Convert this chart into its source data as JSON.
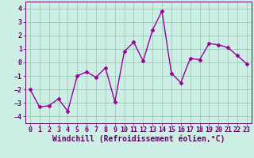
{
  "x": [
    0,
    1,
    2,
    3,
    4,
    5,
    6,
    7,
    8,
    9,
    10,
    11,
    12,
    13,
    14,
    15,
    16,
    17,
    18,
    19,
    20,
    21,
    22,
    23
  ],
  "y": [
    -2.0,
    -3.3,
    -3.2,
    -2.7,
    -3.6,
    -1.0,
    -0.7,
    -1.1,
    -0.4,
    -2.9,
    0.8,
    1.5,
    0.1,
    2.4,
    3.8,
    -0.8,
    -1.5,
    0.3,
    0.2,
    1.4,
    1.3,
    1.1,
    0.5,
    -0.1
  ],
  "line_color": "#990099",
  "marker": "D",
  "marker_size": 2.5,
  "line_width": 1.0,
  "xlabel": "Windchill (Refroidissement éolien,°C)",
  "xlabel_fontsize": 7,
  "xlim": [
    -0.5,
    23.5
  ],
  "ylim": [
    -4.5,
    4.5
  ],
  "yticks": [
    -4,
    -3,
    -2,
    -1,
    0,
    1,
    2,
    3,
    4
  ],
  "xticks": [
    0,
    1,
    2,
    3,
    4,
    5,
    6,
    7,
    8,
    9,
    10,
    11,
    12,
    13,
    14,
    15,
    16,
    17,
    18,
    19,
    20,
    21,
    22,
    23
  ],
  "grid_color": "#99ccbb",
  "bg_color": "#cceee4",
  "tick_fontsize": 6,
  "axis_color": "#660066",
  "spine_color": "#660066"
}
